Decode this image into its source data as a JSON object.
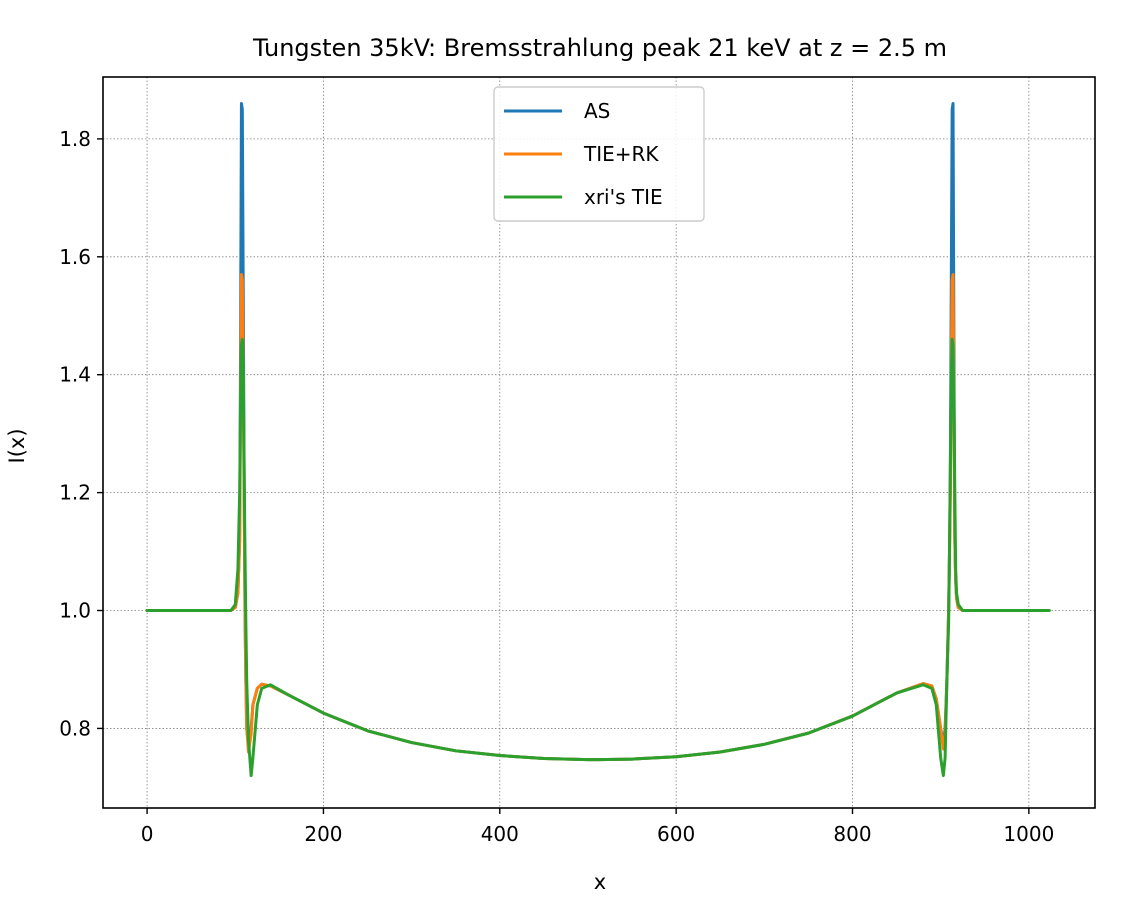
{
  "chart_data": {
    "type": "line",
    "title": "Tungsten 35kV: Bremsstrahlung peak 21 keV at z = 2.5 m",
    "xlabel": "x",
    "ylabel": "I(x)",
    "xlim": [
      -50,
      1075
    ],
    "ylim": [
      0.665,
      1.905
    ],
    "xticks": [
      0,
      200,
      400,
      600,
      800,
      1000
    ],
    "yticks": [
      0.8,
      1.0,
      1.2,
      1.4,
      1.6,
      1.8
    ],
    "xtick_labels": [
      "0",
      "200",
      "400",
      "600",
      "800",
      "1000"
    ],
    "ytick_labels": [
      "0.8",
      "1.0",
      "1.2",
      "1.4",
      "1.6",
      "1.8"
    ],
    "grid": true,
    "legend_position": "top-center",
    "series": [
      {
        "name": "AS",
        "color": "#1f77b4",
        "x": [
          0,
          95,
          100,
          103,
          105,
          106,
          107,
          108,
          109,
          110,
          111,
          112,
          113,
          115,
          118,
          120,
          125,
          130,
          140,
          160,
          200,
          250,
          300,
          350,
          400,
          450,
          500,
          512,
          550,
          600,
          650,
          700,
          750,
          800,
          850,
          880,
          890,
          895,
          900,
          903,
          905,
          907,
          909,
          910,
          911,
          912,
          913,
          914,
          915,
          916,
          917,
          918,
          920,
          925,
          1023
        ],
        "values": [
          1.0,
          1.0,
          1.005,
          1.03,
          1.12,
          1.45,
          1.86,
          1.85,
          1.55,
          1.25,
          1.0,
          0.88,
          0.8,
          0.77,
          0.8,
          0.84,
          0.868,
          0.875,
          0.872,
          0.857,
          0.826,
          0.796,
          0.776,
          0.762,
          0.754,
          0.749,
          0.747,
          0.747,
          0.748,
          0.752,
          0.76,
          0.773,
          0.792,
          0.821,
          0.86,
          0.876,
          0.872,
          0.85,
          0.8,
          0.775,
          0.8,
          0.88,
          1.0,
          1.1,
          1.25,
          1.55,
          1.85,
          1.86,
          1.45,
          1.12,
          1.05,
          1.02,
          1.005,
          1.0,
          1.0
        ]
      },
      {
        "name": "TIE+RK",
        "color": "#ff7f0e",
        "x": [
          0,
          95,
          100,
          103,
          105,
          106,
          107,
          108,
          109,
          110,
          111,
          112,
          113,
          115,
          118,
          120,
          125,
          130,
          140,
          160,
          200,
          250,
          300,
          350,
          400,
          450,
          500,
          512,
          550,
          600,
          650,
          700,
          750,
          800,
          850,
          880,
          890,
          895,
          900,
          903,
          905,
          907,
          909,
          910,
          911,
          912,
          913,
          914,
          915,
          916,
          917,
          918,
          920,
          925,
          1023
        ],
        "values": [
          1.0,
          1.0,
          1.005,
          1.03,
          1.12,
          1.35,
          1.57,
          1.56,
          1.4,
          1.2,
          1.0,
          0.88,
          0.8,
          0.76,
          0.79,
          0.84,
          0.868,
          0.875,
          0.872,
          0.857,
          0.826,
          0.796,
          0.776,
          0.762,
          0.754,
          0.749,
          0.747,
          0.747,
          0.748,
          0.752,
          0.76,
          0.773,
          0.792,
          0.821,
          0.86,
          0.876,
          0.872,
          0.85,
          0.8,
          0.765,
          0.79,
          0.88,
          1.0,
          1.1,
          1.2,
          1.4,
          1.56,
          1.57,
          1.35,
          1.12,
          1.05,
          1.02,
          1.005,
          1.0,
          1.0
        ]
      },
      {
        "name": "xri's TIE",
        "color": "#2ca02c",
        "x": [
          0,
          95,
          100,
          103,
          105,
          106,
          107,
          108,
          109,
          110,
          111,
          112,
          113,
          115,
          118,
          120,
          125,
          130,
          140,
          160,
          200,
          250,
          300,
          350,
          400,
          450,
          500,
          512,
          550,
          600,
          650,
          700,
          750,
          800,
          850,
          880,
          890,
          895,
          900,
          903,
          905,
          907,
          909,
          910,
          911,
          912,
          913,
          914,
          915,
          916,
          917,
          918,
          920,
          925,
          1023
        ],
        "values": [
          1.0,
          1.0,
          1.01,
          1.07,
          1.2,
          1.35,
          1.45,
          1.46,
          1.4,
          1.25,
          1.1,
          0.98,
          0.88,
          0.78,
          0.72,
          0.75,
          0.84,
          0.868,
          0.874,
          0.857,
          0.826,
          0.796,
          0.776,
          0.762,
          0.754,
          0.749,
          0.747,
          0.747,
          0.748,
          0.752,
          0.76,
          0.773,
          0.792,
          0.821,
          0.86,
          0.874,
          0.868,
          0.84,
          0.75,
          0.72,
          0.75,
          0.88,
          0.98,
          1.1,
          1.25,
          1.4,
          1.46,
          1.45,
          1.35,
          1.2,
          1.07,
          1.03,
          1.01,
          1.0,
          1.0
        ]
      }
    ]
  }
}
